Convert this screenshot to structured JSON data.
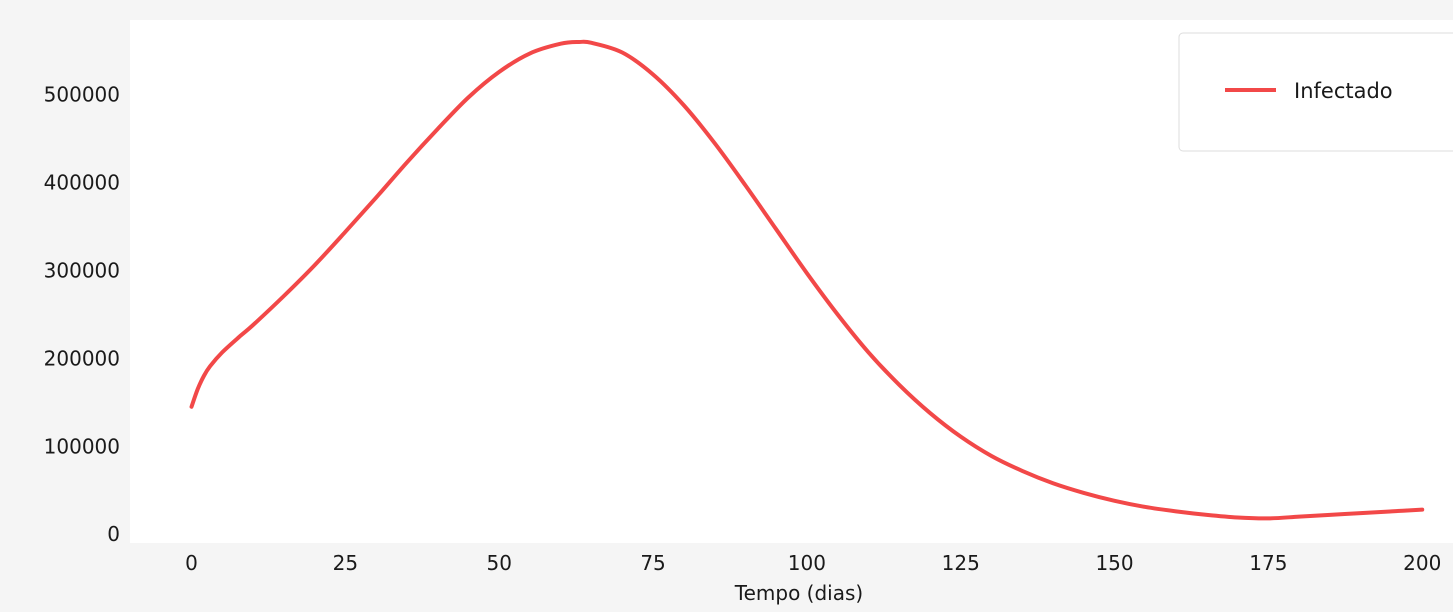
{
  "colors": {
    "page_background": "#ffffff",
    "frame_background": "#f5f5f5",
    "axes_background": "#ffffff",
    "line": "#f24848",
    "legend_border": "#dddddd"
  },
  "chart_data": {
    "type": "line",
    "title": "",
    "xlabel": "Tempo (dias)",
    "ylabel": "",
    "xlim": [
      -10,
      205
    ],
    "ylim": [
      -10000,
      585000
    ],
    "xticks": [
      0,
      25,
      50,
      75,
      100,
      125,
      150,
      175,
      200
    ],
    "yticks": [
      0,
      100000,
      200000,
      300000,
      400000,
      500000
    ],
    "xtick_labels": [
      "0",
      "25",
      "50",
      "75",
      "100",
      "125",
      "150",
      "175",
      "200"
    ],
    "ytick_labels": [
      "0",
      "100000",
      "200000",
      "300000",
      "400000",
      "500000"
    ],
    "grid": false,
    "legend": {
      "position": "top-right",
      "entries": [
        "Infectado"
      ]
    },
    "series": [
      {
        "name": "Infectado",
        "color": "#f24848",
        "x": [
          0,
          1,
          2,
          3,
          5,
          8,
          10,
          15,
          20,
          25,
          30,
          35,
          40,
          45,
          50,
          55,
          60,
          63,
          65,
          70,
          75,
          80,
          85,
          90,
          95,
          100,
          105,
          110,
          115,
          120,
          125,
          130,
          135,
          140,
          145,
          150,
          155,
          160,
          165,
          170,
          175,
          180,
          185,
          190,
          195,
          200
        ],
        "y": [
          145000,
          165000,
          180000,
          191000,
          207000,
          226000,
          238000,
          271000,
          306000,
          344000,
          383000,
          423000,
          461000,
          497000,
          526000,
          547000,
          558000,
          560000,
          559000,
          548000,
          523000,
          488000,
          445000,
          397000,
          347000,
          297000,
          250000,
          207000,
          170000,
          138000,
          111000,
          89000,
          72000,
          58000,
          47000,
          38000,
          31000,
          26000,
          22000,
          19000,
          18000,
          20000,
          22000,
          24000,
          26000,
          28000
        ]
      }
    ]
  }
}
